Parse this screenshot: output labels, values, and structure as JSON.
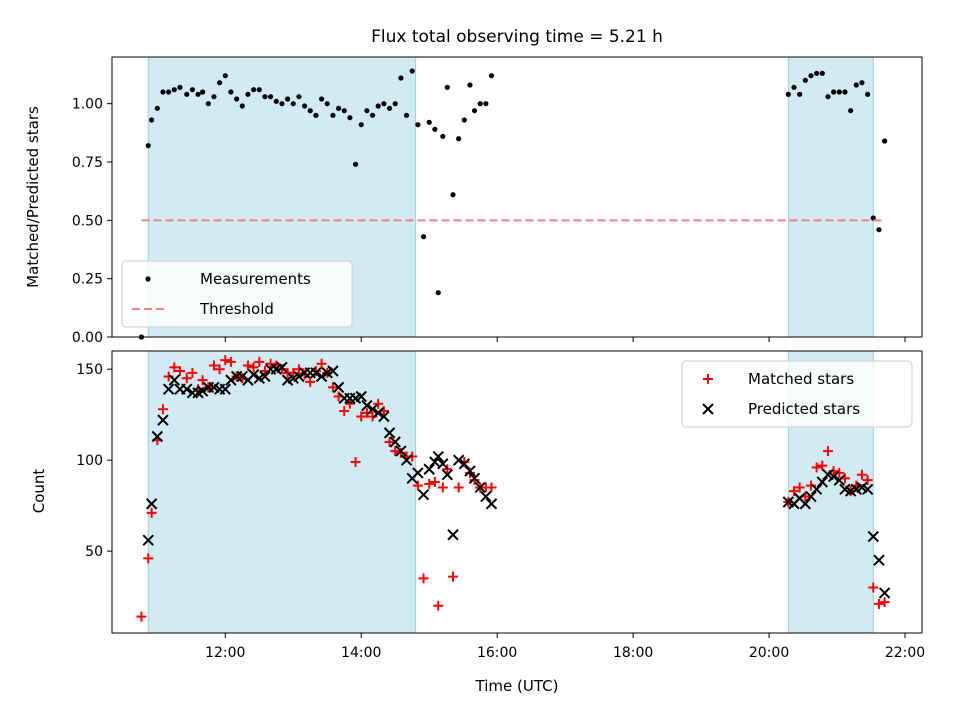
{
  "chart_data": [
    {
      "type": "scatter",
      "panel": "top",
      "title": "Flux total observing time = 5.21 h",
      "xlabel": "",
      "ylabel": "Matched/Predicted stars",
      "xlim": [
        "10:20",
        "22:15"
      ],
      "ylim": [
        0,
        1.2
      ],
      "yticks": [
        0.0,
        0.25,
        0.5,
        0.75,
        1.0
      ],
      "ytick_labels": [
        "0.00",
        "0.25",
        "0.50",
        "0.75",
        "1.00"
      ],
      "xticks": [
        "12:00",
        "14:00",
        "16:00",
        "18:00",
        "20:00",
        "22:00"
      ],
      "xtick_labels_visible": false,
      "grid": false,
      "legend_position": "lower-left",
      "shaded_intervals": [
        [
          "10:52",
          "14:48"
        ],
        [
          "20:17",
          "21:32"
        ]
      ],
      "shade_color": "#add8e6",
      "series": [
        {
          "name": "Measurements",
          "marker": "dot",
          "color": "#000000",
          "points": [
            [
              "10:46",
              0.0
            ],
            [
              "10:52",
              0.82
            ],
            [
              "10:55",
              0.93
            ],
            [
              "11:00",
              0.98
            ],
            [
              "11:05",
              1.05
            ],
            [
              "11:10",
              1.05
            ],
            [
              "11:15",
              1.06
            ],
            [
              "11:20",
              1.07
            ],
            [
              "11:26",
              1.04
            ],
            [
              "11:31",
              1.06
            ],
            [
              "11:36",
              1.04
            ],
            [
              "11:40",
              1.05
            ],
            [
              "11:45",
              1.0
            ],
            [
              "11:50",
              1.03
            ],
            [
              "11:55",
              1.09
            ],
            [
              "12:00",
              1.12
            ],
            [
              "12:05",
              1.05
            ],
            [
              "12:10",
              1.02
            ],
            [
              "12:15",
              0.99
            ],
            [
              "12:20",
              1.04
            ],
            [
              "12:25",
              1.06
            ],
            [
              "12:30",
              1.06
            ],
            [
              "12:35",
              1.03
            ],
            [
              "12:40",
              1.03
            ],
            [
              "12:45",
              1.01
            ],
            [
              "12:50",
              1.0
            ],
            [
              "12:55",
              1.02
            ],
            [
              "13:00",
              1.0
            ],
            [
              "13:05",
              1.03
            ],
            [
              "13:10",
              0.99
            ],
            [
              "13:15",
              0.97
            ],
            [
              "13:20",
              0.95
            ],
            [
              "13:25",
              1.02
            ],
            [
              "13:30",
              1.0
            ],
            [
              "13:35",
              0.95
            ],
            [
              "13:40",
              0.98
            ],
            [
              "13:45",
              0.97
            ],
            [
              "13:50",
              0.94
            ],
            [
              "13:55",
              0.74
            ],
            [
              "14:00",
              0.91
            ],
            [
              "14:05",
              0.97
            ],
            [
              "14:10",
              0.95
            ],
            [
              "14:15",
              0.99
            ],
            [
              "14:20",
              1.0
            ],
            [
              "14:25",
              0.98
            ],
            [
              "14:30",
              1.0
            ],
            [
              "14:35",
              1.11
            ],
            [
              "14:40",
              0.95
            ],
            [
              "14:45",
              1.14
            ],
            [
              "14:50",
              0.91
            ],
            [
              "14:55",
              0.43
            ],
            [
              "15:00",
              0.92
            ],
            [
              "15:05",
              0.89
            ],
            [
              "15:08",
              0.19
            ],
            [
              "15:12",
              0.86
            ],
            [
              "15:16",
              1.07
            ],
            [
              "15:21",
              0.61
            ],
            [
              "15:26",
              0.85
            ],
            [
              "15:31",
              0.93
            ],
            [
              "15:36",
              1.08
            ],
            [
              "15:40",
              0.97
            ],
            [
              "15:45",
              1.0
            ],
            [
              "15:50",
              1.0
            ],
            [
              "15:55",
              1.12
            ],
            [
              "20:17",
              1.04
            ],
            [
              "20:22",
              1.07
            ],
            [
              "20:27",
              1.04
            ],
            [
              "20:32",
              1.1
            ],
            [
              "20:37",
              1.12
            ],
            [
              "20:42",
              1.13
            ],
            [
              "20:47",
              1.13
            ],
            [
              "20:52",
              1.03
            ],
            [
              "20:57",
              1.05
            ],
            [
              "21:02",
              1.05
            ],
            [
              "21:07",
              1.05
            ],
            [
              "21:12",
              0.97
            ],
            [
              "21:17",
              1.08
            ],
            [
              "21:22",
              1.09
            ],
            [
              "21:27",
              1.04
            ],
            [
              "21:32",
              0.51
            ],
            [
              "21:37",
              0.46
            ],
            [
              "21:42",
              0.84
            ]
          ]
        },
        {
          "name": "Threshold",
          "marker": "dashed-line",
          "color": "#f08080",
          "points": [
            [
              "10:46",
              0.5
            ],
            [
              "21:42",
              0.5
            ]
          ]
        }
      ]
    },
    {
      "type": "scatter",
      "panel": "bottom",
      "title": "",
      "xlabel": "Time (UTC)",
      "ylabel": "Count",
      "xlim": [
        "10:20",
        "22:15"
      ],
      "ylim": [
        5,
        160
      ],
      "yticks": [
        50,
        100,
        150
      ],
      "xticks": [
        "12:00",
        "14:00",
        "16:00",
        "18:00",
        "20:00",
        "22:00"
      ],
      "grid": false,
      "legend_position": "upper-right",
      "shaded_intervals": [
        [
          "10:52",
          "14:48"
        ],
        [
          "20:17",
          "21:32"
        ]
      ],
      "shade_color": "#add8e6",
      "series": [
        {
          "name": "Matched stars",
          "marker": "plus",
          "color": "#ff0000",
          "points": [
            [
              "10:46",
              14
            ],
            [
              "10:52",
              46
            ],
            [
              "10:55",
              71
            ],
            [
              "11:00",
              111
            ],
            [
              "11:05",
              128
            ],
            [
              "11:10",
              146
            ],
            [
              "11:15",
              151
            ],
            [
              "11:20",
              149
            ],
            [
              "11:26",
              145
            ],
            [
              "11:31",
              148
            ],
            [
              "11:36",
              139
            ],
            [
              "11:40",
              144
            ],
            [
              "11:45",
              140
            ],
            [
              "11:50",
              152
            ],
            [
              "11:55",
              150
            ],
            [
              "12:00",
              155
            ],
            [
              "12:05",
              154
            ],
            [
              "12:10",
              146
            ],
            [
              "12:15",
              145
            ],
            [
              "12:20",
              152
            ],
            [
              "12:25",
              151
            ],
            [
              "12:30",
              154
            ],
            [
              "12:35",
              149
            ],
            [
              "12:40",
              153
            ],
            [
              "12:45",
              152
            ],
            [
              "12:50",
              150
            ],
            [
              "12:55",
              148
            ],
            [
              "13:00",
              148
            ],
            [
              "13:05",
              150
            ],
            [
              "13:10",
              147
            ],
            [
              "13:15",
              143
            ],
            [
              "13:20",
              149
            ],
            [
              "13:25",
              153
            ],
            [
              "13:30",
              148
            ],
            [
              "13:35",
              140
            ],
            [
              "13:40",
              135
            ],
            [
              "13:45",
              127
            ],
            [
              "13:50",
              131
            ],
            [
              "13:55",
              99
            ],
            [
              "14:00",
              124
            ],
            [
              "14:05",
              126
            ],
            [
              "14:10",
              124
            ],
            [
              "14:15",
              131
            ],
            [
              "14:20",
              127
            ],
            [
              "14:25",
              110
            ],
            [
              "14:30",
              105
            ],
            [
              "14:35",
              104
            ],
            [
              "14:40",
              102
            ],
            [
              "14:45",
              102
            ],
            [
              "14:50",
              86
            ],
            [
              "14:55",
              35
            ],
            [
              "15:00",
              87
            ],
            [
              "15:05",
              88
            ],
            [
              "15:08",
              20
            ],
            [
              "15:12",
              85
            ],
            [
              "15:16",
              95
            ],
            [
              "15:21",
              36
            ],
            [
              "15:26",
              85
            ],
            [
              "15:31",
              99
            ],
            [
              "15:36",
              93
            ],
            [
              "15:40",
              89
            ],
            [
              "15:45",
              85
            ],
            [
              "15:50",
              85
            ],
            [
              "15:55",
              85
            ],
            [
              "20:17",
              77
            ],
            [
              "20:22",
              83
            ],
            [
              "20:27",
              85
            ],
            [
              "20:32",
              80
            ],
            [
              "20:37",
              86
            ],
            [
              "20:42",
              96
            ],
            [
              "20:47",
              97
            ],
            [
              "20:52",
              105
            ],
            [
              "20:57",
              94
            ],
            [
              "21:02",
              93
            ],
            [
              "21:07",
              90
            ],
            [
              "21:12",
              83
            ],
            [
              "21:17",
              86
            ],
            [
              "21:22",
              92
            ],
            [
              "21:27",
              89
            ],
            [
              "21:32",
              30
            ],
            [
              "21:37",
              21
            ],
            [
              "21:42",
              22
            ]
          ]
        },
        {
          "name": "Predicted stars",
          "marker": "x",
          "color": "#000000",
          "points": [
            [
              "10:52",
              56
            ],
            [
              "10:55",
              76
            ],
            [
              "11:00",
              113
            ],
            [
              "11:05",
              122
            ],
            [
              "11:10",
              139
            ],
            [
              "11:15",
              144
            ],
            [
              "11:20",
              139
            ],
            [
              "11:26",
              139
            ],
            [
              "11:31",
              137
            ],
            [
              "11:36",
              137
            ],
            [
              "11:40",
              138
            ],
            [
              "11:45",
              140
            ],
            [
              "11:50",
              140
            ],
            [
              "11:55",
              139
            ],
            [
              "12:00",
              139
            ],
            [
              "12:05",
              144
            ],
            [
              "12:10",
              146
            ],
            [
              "12:15",
              146
            ],
            [
              "12:20",
              144
            ],
            [
              "12:25",
              147
            ],
            [
              "12:30",
              145
            ],
            [
              "12:35",
              146
            ],
            [
              "12:40",
              150
            ],
            [
              "12:45",
              150
            ],
            [
              "12:50",
              151
            ],
            [
              "12:55",
              144
            ],
            [
              "13:00",
              145
            ],
            [
              "13:05",
              146
            ],
            [
              "13:10",
              148
            ],
            [
              "13:15",
              148
            ],
            [
              "13:20",
              148
            ],
            [
              "13:25",
              146
            ],
            [
              "13:30",
              148
            ],
            [
              "13:35",
              149
            ],
            [
              "13:40",
              140
            ],
            [
              "13:45",
              134
            ],
            [
              "13:50",
              134
            ],
            [
              "13:55",
              134
            ],
            [
              "14:00",
              135
            ],
            [
              "14:05",
              130
            ],
            [
              "14:10",
              128
            ],
            [
              "14:15",
              126
            ],
            [
              "14:20",
              124
            ],
            [
              "14:25",
              115
            ],
            [
              "14:30",
              110
            ],
            [
              "14:35",
              105
            ],
            [
              "14:40",
              100
            ],
            [
              "14:45",
              90
            ],
            [
              "14:50",
              93
            ],
            [
              "14:55",
              81
            ],
            [
              "15:00",
              95
            ],
            [
              "15:05",
              99
            ],
            [
              "15:08",
              102
            ],
            [
              "15:12",
              98
            ],
            [
              "15:16",
              92
            ],
            [
              "15:21",
              59
            ],
            [
              "15:26",
              100
            ],
            [
              "15:31",
              98
            ],
            [
              "15:36",
              94
            ],
            [
              "15:40",
              90
            ],
            [
              "15:45",
              85
            ],
            [
              "15:50",
              80
            ],
            [
              "15:55",
              76
            ],
            [
              "20:17",
              77
            ],
            [
              "20:22",
              76
            ],
            [
              "20:27",
              79
            ],
            [
              "20:32",
              76
            ],
            [
              "20:37",
              80
            ],
            [
              "20:42",
              84
            ],
            [
              "20:47",
              88
            ],
            [
              "20:52",
              92
            ],
            [
              "20:57",
              91
            ],
            [
              "21:02",
              89
            ],
            [
              "21:07",
              84
            ],
            [
              "21:12",
              83
            ],
            [
              "21:17",
              84
            ],
            [
              "21:22",
              85
            ],
            [
              "21:27",
              84
            ],
            [
              "21:32",
              58
            ],
            [
              "21:37",
              45
            ],
            [
              "21:42",
              27
            ]
          ]
        }
      ]
    }
  ]
}
